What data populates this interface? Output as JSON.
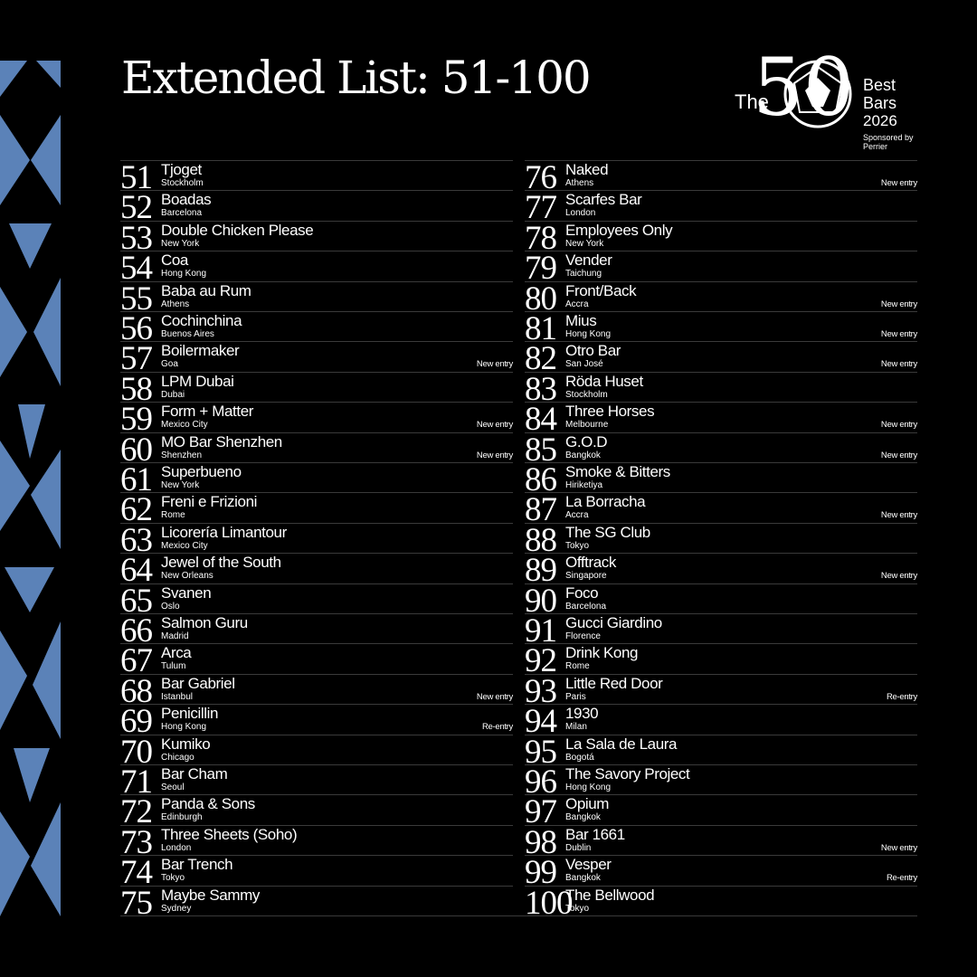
{
  "header": {
    "title": "Extended List: 51-100"
  },
  "logo": {
    "the": "The",
    "number": "50",
    "best": "Best",
    "bars": "Bars",
    "year": "2026",
    "sponsor_line": "Sponsored by",
    "sponsor": "Perrier"
  },
  "entries": [
    {
      "rank": 51,
      "name": "Tjoget",
      "city": "Stockholm"
    },
    {
      "rank": 52,
      "name": "Boadas",
      "city": "Barcelona"
    },
    {
      "rank": 53,
      "name": "Double Chicken Please",
      "city": "New York"
    },
    {
      "rank": 54,
      "name": "Coa",
      "city": "Hong Kong"
    },
    {
      "rank": 55,
      "name": "Baba au Rum",
      "city": "Athens"
    },
    {
      "rank": 56,
      "name": "Cochinchina",
      "city": "Buenos Aires"
    },
    {
      "rank": 57,
      "name": "Boilermaker",
      "city": "Goa",
      "tag": "New entry"
    },
    {
      "rank": 58,
      "name": "LPM Dubai",
      "city": "Dubai"
    },
    {
      "rank": 59,
      "name": "Form + Matter",
      "city": "Mexico City",
      "tag": "New entry"
    },
    {
      "rank": 60,
      "name": "MO Bar Shenzhen",
      "city": "Shenzhen",
      "tag": "New entry"
    },
    {
      "rank": 61,
      "name": "Superbueno",
      "city": "New York"
    },
    {
      "rank": 62,
      "name": "Freni e Frizioni",
      "city": "Rome"
    },
    {
      "rank": 63,
      "name": "Licorería Limantour",
      "city": "Mexico City"
    },
    {
      "rank": 64,
      "name": "Jewel of the South",
      "city": "New Orleans"
    },
    {
      "rank": 65,
      "name": "Svanen",
      "city": "Oslo"
    },
    {
      "rank": 66,
      "name": "Salmon Guru",
      "city": "Madrid"
    },
    {
      "rank": 67,
      "name": "Arca",
      "city": "Tulum"
    },
    {
      "rank": 68,
      "name": "Bar Gabriel",
      "city": "Istanbul",
      "tag": "New entry"
    },
    {
      "rank": 69,
      "name": "Penicillin",
      "city": "Hong Kong",
      "tag": "Re-entry"
    },
    {
      "rank": 70,
      "name": "Kumiko",
      "city": "Chicago"
    },
    {
      "rank": 71,
      "name": "Bar Cham",
      "city": "Seoul"
    },
    {
      "rank": 72,
      "name": "Panda & Sons",
      "city": "Edinburgh"
    },
    {
      "rank": 73,
      "name": "Three Sheets (Soho)",
      "city": "London"
    },
    {
      "rank": 74,
      "name": "Bar Trench",
      "city": "Tokyo"
    },
    {
      "rank": 75,
      "name": "Maybe Sammy",
      "city": "Sydney"
    },
    {
      "rank": 76,
      "name": "Naked",
      "city": "Athens",
      "tag": "New entry"
    },
    {
      "rank": 77,
      "name": "Scarfes Bar",
      "city": "London"
    },
    {
      "rank": 78,
      "name": "Employees Only",
      "city": "New York"
    },
    {
      "rank": 79,
      "name": "Vender",
      "city": "Taichung"
    },
    {
      "rank": 80,
      "name": "Front/Back",
      "city": "Accra",
      "tag": "New entry"
    },
    {
      "rank": 81,
      "name": "Mius",
      "city": "Hong Kong",
      "tag": "New entry"
    },
    {
      "rank": 82,
      "name": "Otro Bar",
      "city": "San José",
      "tag": "New entry"
    },
    {
      "rank": 83,
      "name": "Röda Huset",
      "city": "Stockholm"
    },
    {
      "rank": 84,
      "name": "Three Horses",
      "city": "Melbourne",
      "tag": "New entry"
    },
    {
      "rank": 85,
      "name": "G.O.D",
      "city": "Bangkok",
      "tag": "New entry"
    },
    {
      "rank": 86,
      "name": "Smoke & Bitters",
      "city": "Hiriketiya"
    },
    {
      "rank": 87,
      "name": "La Borracha",
      "city": "Accra",
      "tag": "New entry"
    },
    {
      "rank": 88,
      "name": "The SG Club",
      "city": "Tokyo"
    },
    {
      "rank": 89,
      "name": "Offtrack",
      "city": "Singapore",
      "tag": "New entry"
    },
    {
      "rank": 90,
      "name": "Foco",
      "city": "Barcelona"
    },
    {
      "rank": 91,
      "name": "Gucci Giardino",
      "city": "Florence"
    },
    {
      "rank": 92,
      "name": "Drink Kong",
      "city": "Rome"
    },
    {
      "rank": 93,
      "name": "Little Red Door",
      "city": "Paris",
      "tag": "Re-entry"
    },
    {
      "rank": 94,
      "name": "1930",
      "city": "Milan"
    },
    {
      "rank": 95,
      "name": "La Sala de Laura",
      "city": "Bogotá"
    },
    {
      "rank": 96,
      "name": "The Savory Project",
      "city": "Hong Kong"
    },
    {
      "rank": 97,
      "name": "Opium",
      "city": "Bangkok"
    },
    {
      "rank": 98,
      "name": "Bar 1661",
      "city": "Dublin",
      "tag": "New entry"
    },
    {
      "rank": 99,
      "name": "Vesper",
      "city": "Bangkok",
      "tag": "Re-entry"
    },
    {
      "rank": 100,
      "name": "The Bellwood",
      "city": "Tokyo"
    }
  ]
}
